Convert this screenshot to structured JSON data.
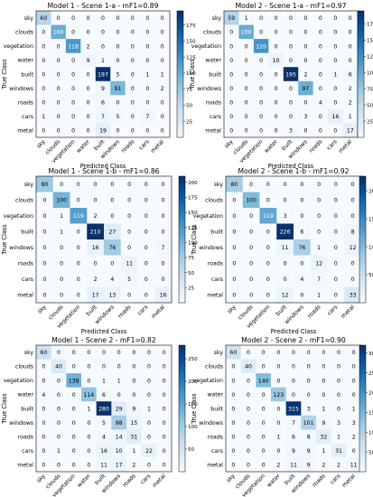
{
  "chart_data": [
    {
      "type": "heatmap",
      "title": "Model 1 - Scene 1-a - mF1=0.89",
      "xlabel": "Predicted Class",
      "ylabel": "True Class",
      "categories": [
        "sky",
        "clouds",
        "vegetation",
        "water",
        "built",
        "windows",
        "roads",
        "cars",
        "metal"
      ],
      "matrix": [
        [
          60,
          0,
          0,
          0,
          0,
          0,
          0,
          0,
          0
        ],
        [
          0,
          100,
          0,
          0,
          0,
          0,
          0,
          0,
          0
        ],
        [
          0,
          0,
          118,
          2,
          0,
          0,
          0,
          0,
          0
        ],
        [
          0,
          0,
          0,
          9,
          1,
          0,
          0,
          0,
          0
        ],
        [
          0,
          0,
          0,
          0,
          197,
          5,
          0,
          1,
          1
        ],
        [
          0,
          0,
          0,
          0,
          9,
          91,
          0,
          0,
          2
        ],
        [
          0,
          0,
          0,
          0,
          6,
          0,
          0,
          0,
          0
        ],
        [
          1,
          0,
          0,
          0,
          7,
          5,
          0,
          7,
          0
        ],
        [
          0,
          0,
          0,
          0,
          19,
          0,
          0,
          0,
          0
        ]
      ],
      "colorbar_ticks": [
        25,
        50,
        75,
        100,
        125,
        150,
        175
      ],
      "vmax": 197
    },
    {
      "type": "heatmap",
      "title": "Model 2 - Scene 1-a - mF1=0.97",
      "xlabel": "Predicted Class",
      "ylabel": "True Class",
      "categories": [
        "sky",
        "clouds",
        "vegetation",
        "water",
        "built",
        "windows",
        "roads",
        "cars",
        "metal"
      ],
      "matrix": [
        [
          59,
          1,
          0,
          0,
          0,
          0,
          0,
          0,
          0
        ],
        [
          0,
          100,
          0,
          0,
          0,
          0,
          0,
          0,
          0
        ],
        [
          0,
          0,
          120,
          0,
          0,
          0,
          0,
          0,
          0
        ],
        [
          0,
          0,
          0,
          10,
          0,
          0,
          0,
          0,
          0
        ],
        [
          0,
          0,
          0,
          0,
          195,
          2,
          0,
          1,
          6
        ],
        [
          0,
          0,
          0,
          0,
          0,
          97,
          0,
          0,
          2
        ],
        [
          0,
          0,
          0,
          0,
          0,
          0,
          4,
          0,
          2
        ],
        [
          0,
          0,
          0,
          0,
          0,
          3,
          0,
          16,
          1
        ],
        [
          0,
          0,
          0,
          0,
          3,
          0,
          0,
          0,
          17
        ]
      ],
      "colorbar_ticks": [
        25,
        50,
        75,
        100,
        125,
        150,
        175
      ],
      "vmax": 195
    },
    {
      "type": "heatmap",
      "title": "Model 1 - Scene 1-b - mF1=0.86",
      "xlabel": "Predicted Class",
      "ylabel": "True Class",
      "categories": [
        "sky",
        "clouds",
        "vegetation",
        "built",
        "windows",
        "roads",
        "cars",
        "metal"
      ],
      "matrix": [
        [
          80,
          0,
          0,
          0,
          0,
          0,
          0,
          0
        ],
        [
          0,
          100,
          0,
          0,
          0,
          0,
          0,
          0
        ],
        [
          0,
          1,
          119,
          2,
          0,
          0,
          0,
          0
        ],
        [
          0,
          1,
          0,
          210,
          27,
          0,
          0,
          0
        ],
        [
          0,
          0,
          0,
          16,
          76,
          0,
          0,
          7
        ],
        [
          0,
          0,
          0,
          0,
          0,
          11,
          0,
          0
        ],
        [
          0,
          0,
          0,
          2,
          4,
          5,
          0,
          0
        ],
        [
          0,
          0,
          0,
          17,
          13,
          0,
          0,
          16
        ]
      ],
      "colorbar_ticks": [
        25,
        50,
        75,
        100,
        125,
        150,
        175,
        200
      ],
      "vmax": 210
    },
    {
      "type": "heatmap",
      "title": "Model 2 - Scene 1-b - mF1=0.92",
      "xlabel": "Predicted Class",
      "ylabel": "True Class",
      "categories": [
        "sky",
        "clouds",
        "vegetation",
        "built",
        "windows",
        "roads",
        "cars",
        "metal"
      ],
      "matrix": [
        [
          80,
          0,
          0,
          0,
          0,
          0,
          0,
          0
        ],
        [
          0,
          100,
          0,
          0,
          0,
          0,
          0,
          0
        ],
        [
          0,
          0,
          119,
          3,
          0,
          0,
          0,
          0
        ],
        [
          0,
          0,
          0,
          226,
          6,
          0,
          0,
          8
        ],
        [
          0,
          0,
          0,
          11,
          76,
          1,
          0,
          12
        ],
        [
          0,
          0,
          0,
          0,
          0,
          12,
          0,
          0
        ],
        [
          0,
          0,
          0,
          0,
          4,
          7,
          0,
          0
        ],
        [
          0,
          0,
          0,
          12,
          0,
          1,
          0,
          33
        ]
      ],
      "colorbar_ticks": [
        50,
        100,
        150,
        200
      ],
      "vmax": 226
    },
    {
      "type": "heatmap",
      "title": "Model 1 - Scene 2 - mF1=0.82",
      "xlabel": "Predicted Class",
      "ylabel": "True Class",
      "categories": [
        "sky",
        "clouds",
        "vegetation",
        "water",
        "built",
        "windows",
        "roads",
        "cars",
        "metal"
      ],
      "matrix": [
        [
          60,
          0,
          0,
          0,
          0,
          0,
          0,
          0,
          0
        ],
        [
          0,
          40,
          0,
          0,
          0,
          0,
          0,
          0,
          0
        ],
        [
          0,
          0,
          138,
          0,
          1,
          1,
          0,
          0,
          0
        ],
        [
          4,
          0,
          0,
          114,
          6,
          0,
          0,
          0,
          0
        ],
        [
          0,
          0,
          0,
          1,
          280,
          29,
          9,
          1,
          0
        ],
        [
          0,
          0,
          0,
          0,
          5,
          98,
          15,
          0,
          0
        ],
        [
          0,
          0,
          0,
          0,
          4,
          14,
          31,
          0,
          0
        ],
        [
          0,
          1,
          0,
          0,
          16,
          10,
          1,
          22,
          0
        ],
        [
          0,
          0,
          0,
          0,
          11,
          17,
          2,
          0,
          0
        ]
      ],
      "colorbar_ticks": [
        50,
        100,
        150,
        200,
        250
      ],
      "vmax": 280
    },
    {
      "type": "heatmap",
      "title": "Model 2 - Scene 2 - mF1=0.90",
      "xlabel": "Predicted Class",
      "ylabel": "True Class",
      "categories": [
        "sky",
        "clouds",
        "vegetation",
        "water",
        "built",
        "windows",
        "roads",
        "cars",
        "metal"
      ],
      "matrix": [
        [
          60,
          0,
          0,
          0,
          0,
          0,
          0,
          0,
          0
        ],
        [
          0,
          40,
          0,
          0,
          0,
          0,
          0,
          0,
          0
        ],
        [
          0,
          0,
          140,
          0,
          0,
          0,
          0,
          0,
          0
        ],
        [
          0,
          0,
          0,
          123,
          0,
          0,
          0,
          0,
          0
        ],
        [
          0,
          0,
          0,
          0,
          315,
          3,
          1,
          0,
          1
        ],
        [
          0,
          0,
          0,
          0,
          7,
          101,
          9,
          3,
          3
        ],
        [
          0,
          0,
          0,
          1,
          6,
          8,
          32,
          1,
          2
        ],
        [
          0,
          0,
          0,
          0,
          9,
          9,
          1,
          31,
          0
        ],
        [
          0,
          0,
          0,
          2,
          11,
          9,
          2,
          2,
          11
        ]
      ],
      "colorbar_ticks": [
        50,
        100,
        150,
        200,
        250,
        300
      ],
      "vmax": 320
    }
  ]
}
